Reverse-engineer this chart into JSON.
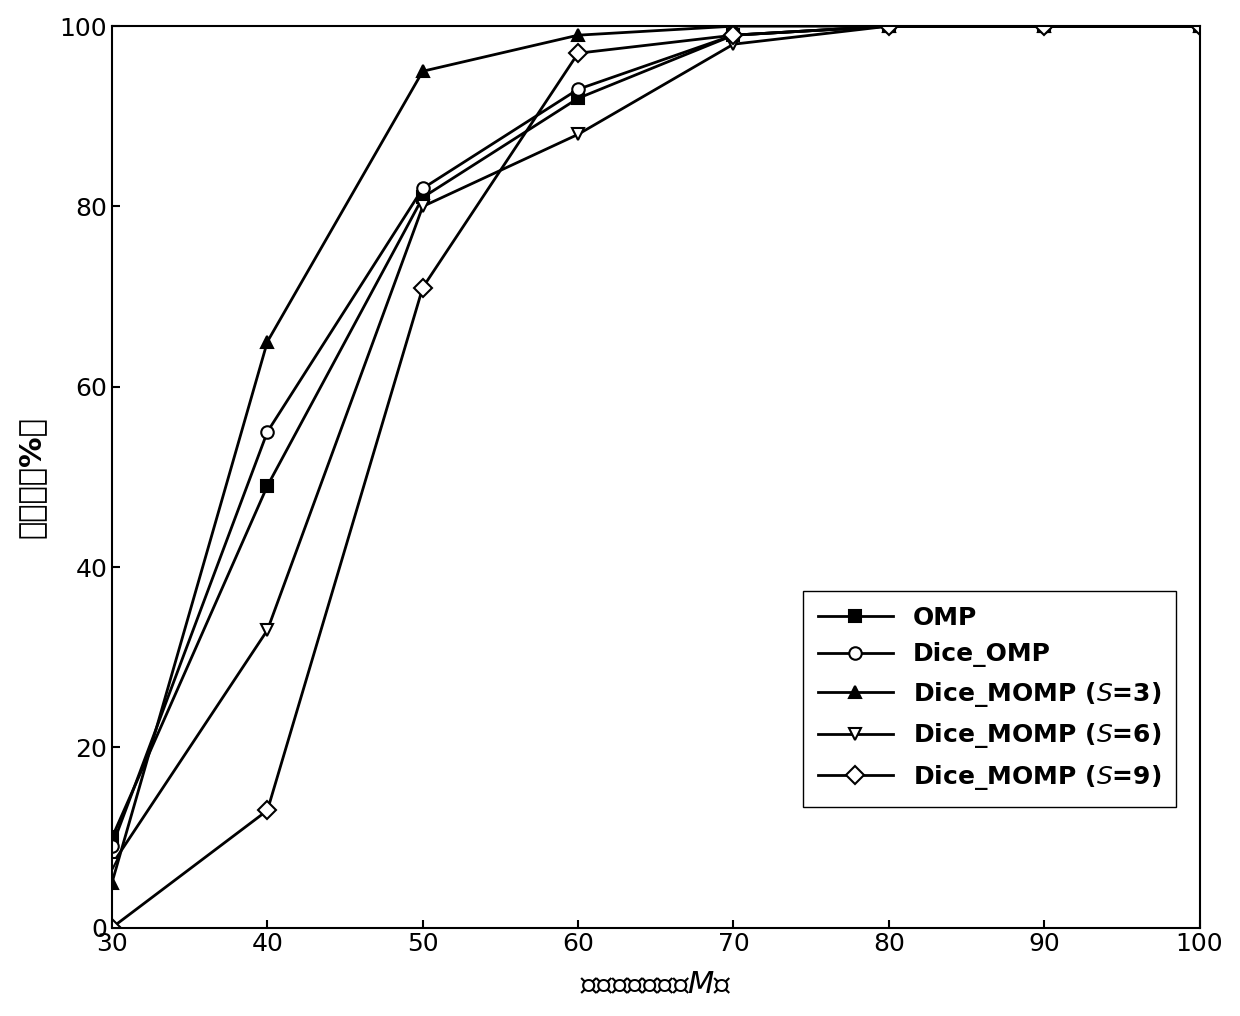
{
  "x": [
    30,
    40,
    50,
    60,
    70,
    80,
    90,
    100
  ],
  "OMP": [
    10,
    49,
    81,
    92,
    99,
    100,
    100,
    100
  ],
  "Dice_OMP": [
    9,
    55,
    82,
    93,
    99,
    100,
    100,
    100
  ],
  "Dice_MOMP_S3": [
    5,
    65,
    95,
    99,
    100,
    100,
    100,
    100
  ],
  "Dice_MOMP_S6": [
    7,
    33,
    80,
    88,
    98,
    100,
    100,
    100
  ],
  "Dice_MOMP_S9": [
    0,
    13,
    71,
    97,
    99,
    100,
    100,
    100
  ],
  "xlabel": "观测矩阵维度（$M$）",
  "ylabel": "成功率（%）",
  "xlim": [
    30,
    100
  ],
  "ylim": [
    0,
    100
  ],
  "xticks": [
    30,
    40,
    50,
    60,
    70,
    80,
    90,
    100
  ],
  "yticks": [
    0,
    20,
    40,
    60,
    80,
    100
  ],
  "legend_labels": [
    "OMP",
    "Dice_OMP",
    "Dice_MOMP ($S$=3)",
    "Dice_MOMP ($S$=6)",
    "Dice_MOMP ($S$=9)"
  ],
  "line_color": "#000000",
  "background_color": "#ffffff",
  "fontsize_label": 22,
  "fontsize_tick": 18,
  "fontsize_legend": 18,
  "linewidth": 2.0,
  "markersize": 9
}
